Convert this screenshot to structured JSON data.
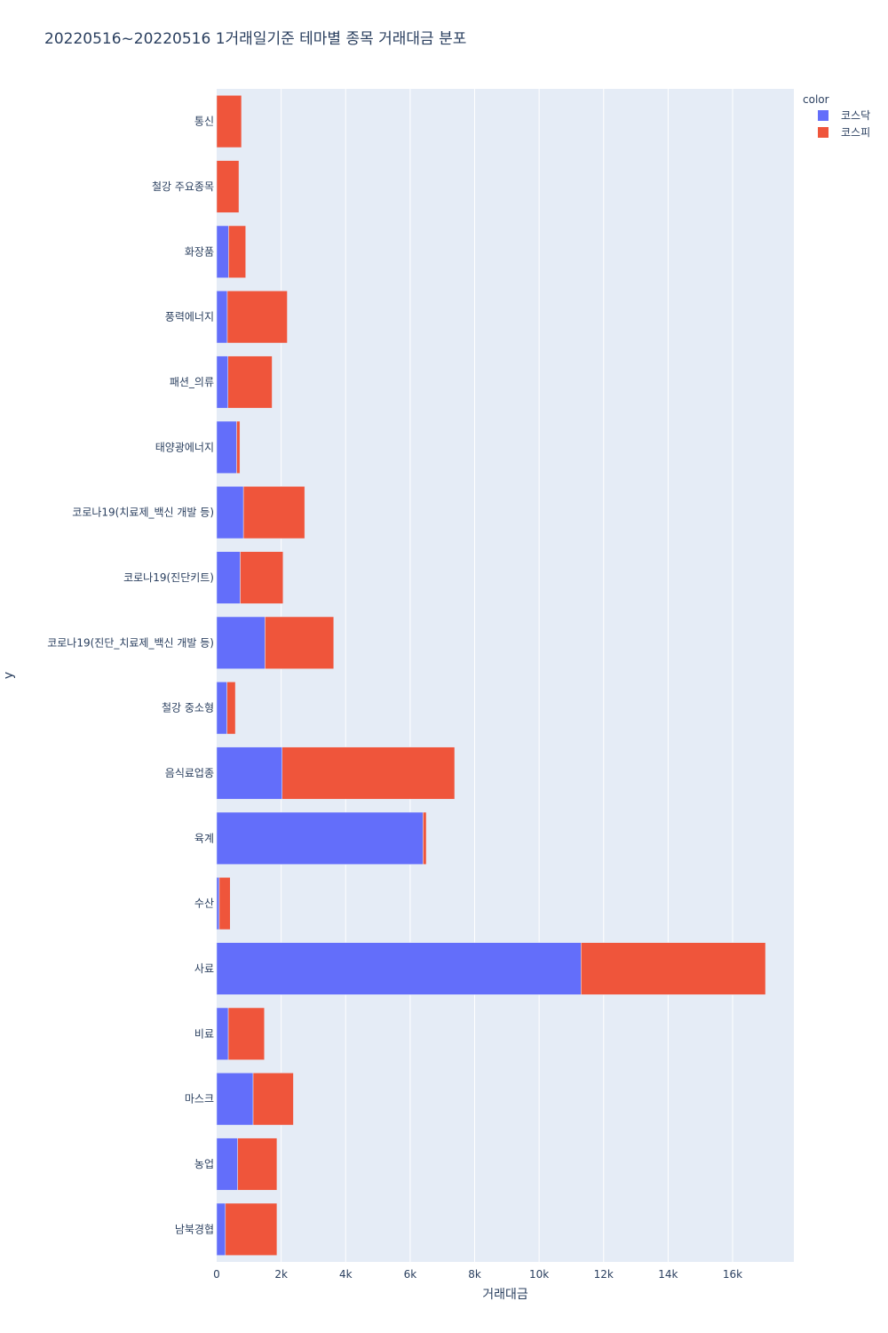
{
  "chart_data": {
    "type": "bar",
    "orientation": "horizontal",
    "barmode": "stack",
    "title": "20220516~20220516 1거래일기준 테마별 종목 거래대금 분포",
    "xlabel": "거래대금",
    "ylabel": "y",
    "xlim": [
      0,
      17900
    ],
    "x_ticks": [
      0,
      2000,
      4000,
      6000,
      8000,
      10000,
      12000,
      14000,
      16000
    ],
    "x_tick_labels": [
      "0",
      "2k",
      "4k",
      "6k",
      "8k",
      "10k",
      "12k",
      "14k",
      "16k"
    ],
    "grid": true,
    "legend": {
      "title": "color",
      "position": "top-right"
    },
    "categories": [
      "통신",
      "철강 주요종목",
      "화장품",
      "풍력에너지",
      "패션_의류",
      "태양광에너지",
      "코로나19(치료제_백신 개발 등)",
      "코로나19(진단키트)",
      "코로나19(진단_치료제_백신 개발 등)",
      "철강 중소형",
      "음식료업종",
      "육계",
      "수산",
      "사료",
      "비료",
      "마스크",
      "농업",
      "남북경협"
    ],
    "series": [
      {
        "name": "코스닥",
        "color": "#636efa",
        "values": [
          0,
          0,
          370,
          330,
          350,
          620,
          830,
          730,
          1500,
          320,
          2030,
          6400,
          80,
          11300,
          360,
          1130,
          650,
          270
        ]
      },
      {
        "name": "코스피",
        "color": "#ef553b",
        "values": [
          770,
          690,
          530,
          1860,
          1370,
          100,
          1900,
          1330,
          2130,
          260,
          5350,
          100,
          340,
          5720,
          1120,
          1250,
          1220,
          1600
        ]
      }
    ]
  }
}
